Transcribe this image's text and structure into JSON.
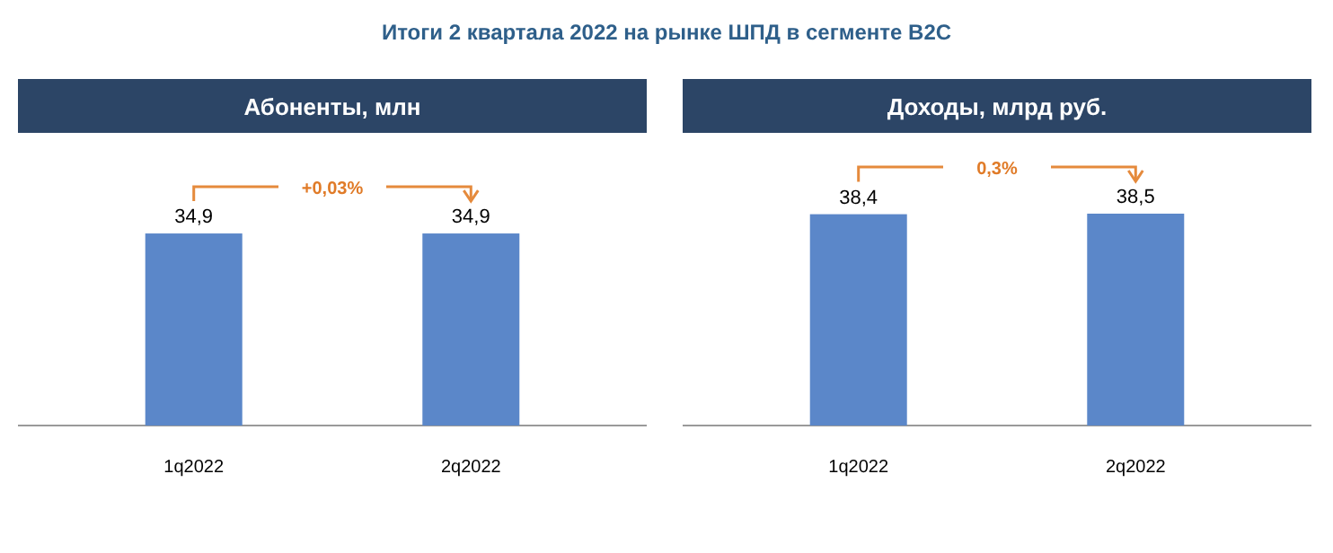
{
  "chart_data": [
    {
      "type": "bar",
      "subtitle": "Итоги 2 квартала 2022 на рынке ШПД в сегменте B2C",
      "title": "Абоненты, млн",
      "categories": [
        "1q2022",
        "2q2022"
      ],
      "values": [
        34.9,
        34.9
      ],
      "value_labels": [
        "34,9",
        "34,9"
      ],
      "color": "#5b87c9",
      "annotations": [
        "+0,03%"
      ]
    },
    {
      "type": "bar",
      "title": "Доходы, млрд руб.",
      "categories": [
        "1q2022",
        "2q2022"
      ],
      "values": [
        38.4,
        38.5
      ],
      "value_labels": [
        "38,4",
        "38,5"
      ],
      "color": "#5b87c9",
      "annotations": [
        "0,3%"
      ]
    }
  ]
}
